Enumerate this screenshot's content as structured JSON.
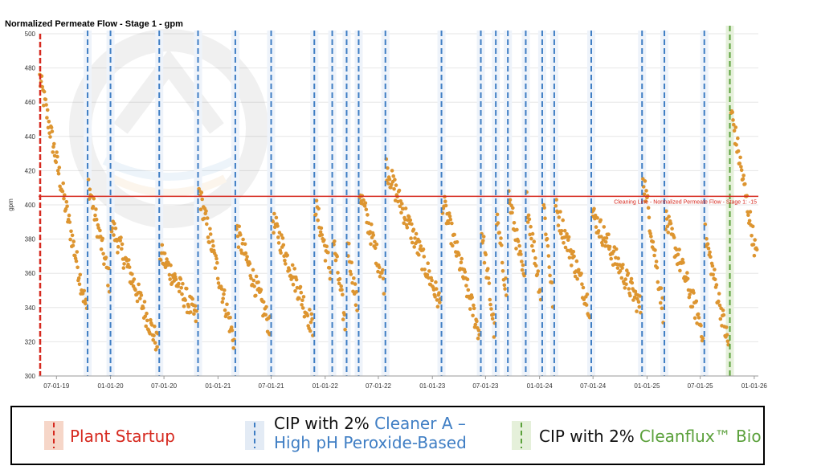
{
  "chart_data": {
    "type": "scatter",
    "title": "Normalized Permeate Flow - Stage 1 - gpm",
    "ylabel": "gpm",
    "xlabel": "",
    "ylim": [
      300,
      500
    ],
    "yticks": [
      300,
      320,
      340,
      360,
      380,
      400,
      420,
      440,
      460,
      480,
      500
    ],
    "xlim": [
      "2019-05-01",
      "2026-01-15"
    ],
    "xticks": [
      {
        "date": "2019-07-01",
        "label": "07-01-19"
      },
      {
        "date": "2020-01-01",
        "label": "01-01-20"
      },
      {
        "date": "2020-07-01",
        "label": "07-01-20"
      },
      {
        "date": "2021-01-01",
        "label": "01-01-21"
      },
      {
        "date": "2021-07-01",
        "label": "07-01-21"
      },
      {
        "date": "2022-01-01",
        "label": "01-01-22"
      },
      {
        "date": "2022-07-01",
        "label": "07-01-22"
      },
      {
        "date": "2023-01-01",
        "label": "01-01-23"
      },
      {
        "date": "2023-07-01",
        "label": "07-01-23"
      },
      {
        "date": "2024-01-01",
        "label": "01-01-24"
      },
      {
        "date": "2024-07-01",
        "label": "07-01-24"
      },
      {
        "date": "2025-01-01",
        "label": "01-01-25"
      },
      {
        "date": "2025-07-01",
        "label": "07-01-25"
      },
      {
        "date": "2026-01-01",
        "label": "01-01-26"
      }
    ],
    "grid": true,
    "cleaning_line": {
      "value": 405,
      "label": "Cleaning Line - Normalized Permeate Flow - Stage 1: -15",
      "color": "#d6291f"
    },
    "startup": {
      "date": "2019-05-01",
      "color": "#d6291f"
    },
    "cip_cleaner_a": {
      "color": "#3f7ec4",
      "dates": [
        "2019-10-15",
        "2020-01-01",
        "2020-06-15",
        "2020-10-25",
        "2021-03-01",
        "2021-07-01",
        "2021-11-25",
        "2022-01-25",
        "2022-03-15",
        "2022-04-25",
        "2022-07-25",
        "2023-02-01",
        "2023-06-15",
        "2023-08-05",
        "2023-09-15",
        "2023-11-15",
        "2024-01-10",
        "2024-02-20",
        "2024-06-25",
        "2024-12-15",
        "2025-03-01",
        "2025-07-15"
      ]
    },
    "cip_cleanflux": {
      "date": "2025-10-10",
      "color": "#5aa03a"
    },
    "series": [
      {
        "color": "#dd9530",
        "segments": [
          {
            "start": "2019-05-05",
            "end": "2019-10-12",
            "from": 474,
            "to": 338
          },
          {
            "start": "2019-10-18",
            "end": "2019-12-28",
            "from": 412,
            "to": 355
          },
          {
            "start": "2020-01-05",
            "end": "2020-06-10",
            "from": 388,
            "to": 318
          },
          {
            "start": "2020-06-18",
            "end": "2020-10-20",
            "from": 372,
            "to": 334
          },
          {
            "start": "2020-10-28",
            "end": "2021-02-25",
            "from": 408,
            "to": 320
          },
          {
            "start": "2021-03-05",
            "end": "2021-06-28",
            "from": 385,
            "to": 328
          },
          {
            "start": "2021-07-05",
            "end": "2021-11-20",
            "from": 392,
            "to": 328
          },
          {
            "start": "2021-11-28",
            "end": "2022-01-20",
            "from": 400,
            "to": 360
          },
          {
            "start": "2022-01-28",
            "end": "2022-03-10",
            "from": 380,
            "to": 330
          },
          {
            "start": "2022-03-18",
            "end": "2022-04-20",
            "from": 378,
            "to": 340
          },
          {
            "start": "2022-04-28",
            "end": "2022-07-20",
            "from": 408,
            "to": 355
          },
          {
            "start": "2022-07-28",
            "end": "2023-01-28",
            "from": 422,
            "to": 342
          },
          {
            "start": "2023-02-05",
            "end": "2023-06-10",
            "from": 402,
            "to": 325
          },
          {
            "start": "2023-06-18",
            "end": "2023-08-01",
            "from": 385,
            "to": 325
          },
          {
            "start": "2023-08-08",
            "end": "2023-09-10",
            "from": 392,
            "to": 350
          },
          {
            "start": "2023-09-18",
            "end": "2023-11-10",
            "from": 405,
            "to": 355
          },
          {
            "start": "2023-11-18",
            "end": "2024-01-05",
            "from": 402,
            "to": 348
          },
          {
            "start": "2024-01-15",
            "end": "2024-02-15",
            "from": 400,
            "to": 345
          },
          {
            "start": "2024-02-25",
            "end": "2024-06-20",
            "from": 398,
            "to": 340
          },
          {
            "start": "2024-06-28",
            "end": "2024-12-10",
            "from": 395,
            "to": 340
          },
          {
            "start": "2024-12-18",
            "end": "2025-02-25",
            "from": 418,
            "to": 338
          },
          {
            "start": "2025-03-05",
            "end": "2025-07-10",
            "from": 392,
            "to": 326
          },
          {
            "start": "2025-07-18",
            "end": "2025-10-05",
            "from": 382,
            "to": 318
          },
          {
            "start": "2025-10-14",
            "end": "2026-01-10",
            "from": 455,
            "to": 368
          }
        ]
      }
    ]
  },
  "legend": {
    "startup": "Plant Startup",
    "cip_a_prefix": "CIP with 2%",
    "cip_a_name": "Cleaner A –",
    "cip_a_name_line2": "High pH Peroxide-Based",
    "cip_b_prefix": "CIP with 2%",
    "cip_b_name": "Cleanflux™ Bio"
  },
  "colors": {
    "startup": "#d6291f",
    "cleaner_a": "#3f7ec4",
    "cleanflux": "#5aa03a",
    "points": "#dd9530"
  }
}
